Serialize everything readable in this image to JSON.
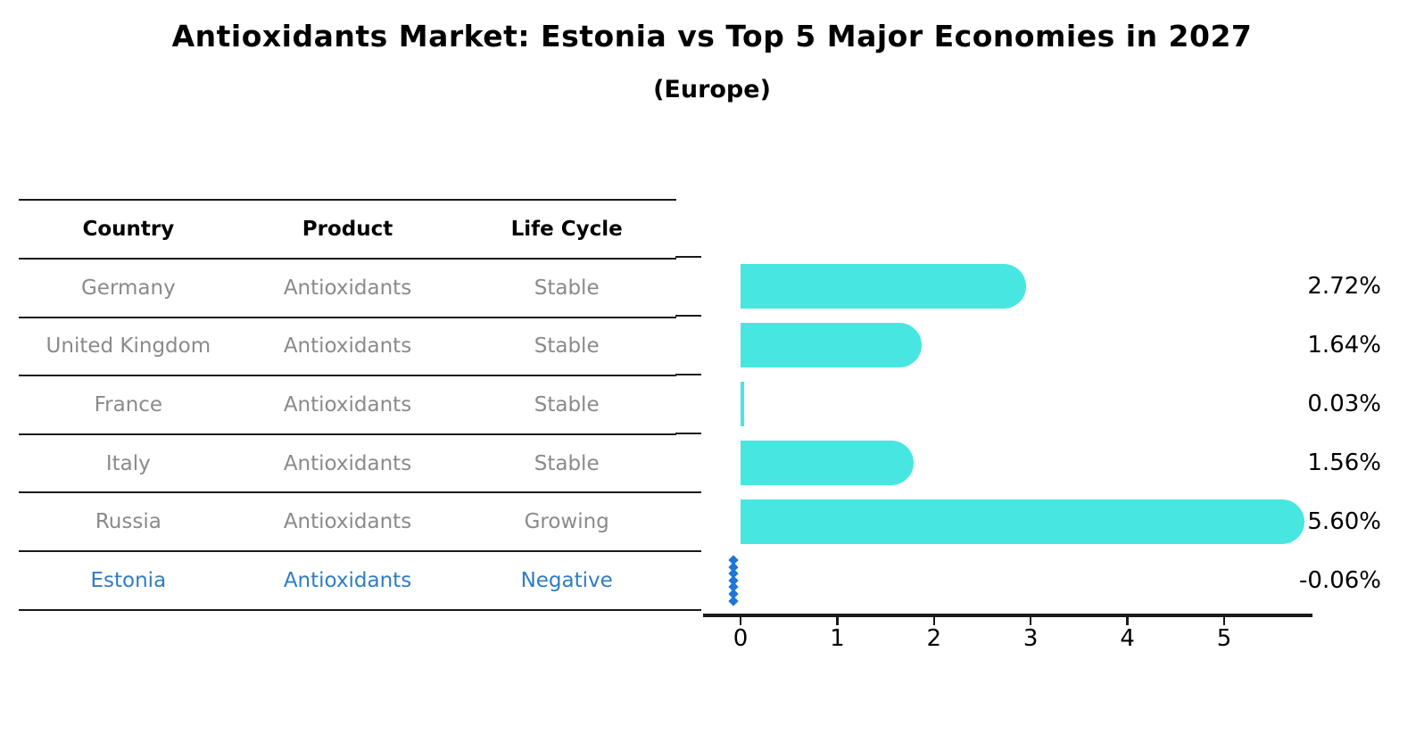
{
  "header": {
    "title": "Antioxidants Market: Estonia vs Top 5 Major Economies in 2027",
    "subtitle": "(Europe)"
  },
  "table": {
    "headers": [
      "Country",
      "Product",
      "Life Cycle"
    ],
    "rows": [
      {
        "country": "Germany",
        "product": "Antioxidants",
        "life_cycle": "Stable",
        "highlight": false
      },
      {
        "country": "United Kingdom",
        "product": "Antioxidants",
        "life_cycle": "Stable",
        "highlight": false
      },
      {
        "country": "France",
        "product": "Antioxidants",
        "life_cycle": "Stable",
        "highlight": false
      },
      {
        "country": "Italy",
        "product": "Antioxidants",
        "life_cycle": "Stable",
        "highlight": false
      },
      {
        "country": "Russia",
        "product": "Antioxidants",
        "life_cycle": "Growing",
        "highlight": false
      },
      {
        "country": "Estonia",
        "product": "Antioxidants",
        "life_cycle": "Negative",
        "highlight": true
      }
    ]
  },
  "chart_data": {
    "type": "bar",
    "orientation": "horizontal",
    "title": "Antioxidants Market: Estonia vs Top 5 Major Economies in 2027",
    "subtitle": "(Europe)",
    "categories": [
      "Germany",
      "United Kingdom",
      "France",
      "Italy",
      "Russia",
      "Estonia"
    ],
    "values": [
      2.72,
      1.64,
      0.03,
      1.56,
      5.6,
      -0.06
    ],
    "value_labels": [
      "2.72%",
      "1.64%",
      "0.03%",
      "1.56%",
      "5.60%",
      "-0.06%"
    ],
    "xticks": [
      "0",
      "1",
      "2",
      "3",
      "4",
      "5"
    ],
    "xlim": [
      -0.39,
      5.91
    ],
    "grid": false,
    "legend": false,
    "bar_color": "#48e6e0",
    "marker_color": "#1f76d4",
    "marker_style": "diamond-dotted-vertical",
    "marker_category": "Estonia"
  },
  "colors": {
    "bar": "#48e6e0",
    "highlight_text": "#2e7cc3",
    "marker": "#1f76d4",
    "muted_text": "#8a8a8a",
    "axis": "#1a1a1a"
  }
}
